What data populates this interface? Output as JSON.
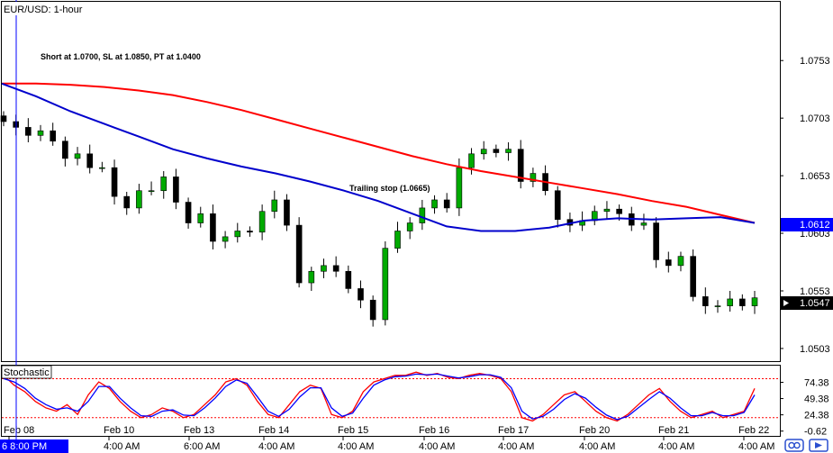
{
  "chart_data": [
    {
      "type": "candlestick",
      "title": "EUR/USD: 1-hour",
      "yticks": [
        "1.0753",
        "1.0703",
        "1.0653",
        "1.0603",
        "1.0553",
        "1.0503"
      ],
      "ytick_values": [
        1.0753,
        1.0703,
        1.0653,
        1.0603,
        1.0553,
        1.0503
      ],
      "ylim": [
        1.0492,
        1.0804
      ],
      "xticks": [
        "Feb 08",
        "Feb 10",
        "Feb 13",
        "Feb 14",
        "Feb 15",
        "Feb 16",
        "Feb 17",
        "Feb 20",
        "Feb 21",
        "Feb 22"
      ],
      "xticks_time": [
        "6 8:00 PM",
        "4:00 AM",
        "6:00 AM",
        "4:00 AM",
        "4:00 AM",
        "4:00 AM",
        "4:00 AM",
        "4:00 AM",
        "4:00 AM",
        "4:00 AM"
      ],
      "annotations": [
        {
          "text": "Short at 1.0700, SL at 1.0850, PT at 1.0400"
        },
        {
          "text": "Trailing stop (1.0665)"
        }
      ],
      "price_labels": [
        {
          "text": "1.0612",
          "value": 1.0612,
          "color": "#0000ff"
        },
        {
          "text": "1.0547",
          "value": 1.0547,
          "color": "#000000"
        }
      ],
      "series": [
        {
          "kind": "moving-average",
          "color": "#ff0000",
          "values": [
            1.0733,
            1.0733,
            1.0732,
            1.073,
            1.0727,
            1.0723,
            1.0717,
            1.071,
            1.0702,
            1.0694,
            1.0686,
            1.0678,
            1.067,
            1.0663,
            1.0657,
            1.0652,
            1.0647,
            1.0642,
            1.0637,
            1.0631,
            1.0626,
            1.0619,
            1.0612
          ]
        },
        {
          "kind": "moving-average",
          "color": "#0000cc",
          "values": [
            1.0733,
            1.0722,
            1.0709,
            1.0698,
            1.0687,
            1.0676,
            1.0668,
            1.0661,
            1.0655,
            1.0648,
            1.064,
            1.0631,
            1.062,
            1.0609,
            1.0605,
            1.0605,
            1.0608,
            1.0614,
            1.0616,
            1.0615,
            1.0616,
            1.0617,
            1.0612
          ]
        },
        {
          "kind": "price-close",
          "values": [
            1.07,
            1.0695,
            1.0688,
            1.0692,
            1.0683,
            1.0668,
            1.0672,
            1.066,
            1.066,
            1.0635,
            1.0625,
            1.064,
            1.064,
            1.0652,
            1.063,
            1.0612,
            1.062,
            1.0596,
            1.06,
            1.0605,
            1.0604,
            1.0622,
            1.0632,
            1.061,
            1.056,
            1.057,
            1.0575,
            1.057,
            1.0555,
            1.0545,
            1.0528,
            1.059,
            1.0605,
            1.0612,
            1.0625,
            1.0632,
            1.0625,
            1.066,
            1.0672,
            1.0676,
            1.0673,
            1.0676,
            1.0648,
            1.0655,
            1.064,
            1.0615,
            1.061,
            1.0614,
            1.0622,
            1.0624,
            1.062,
            1.061,
            1.0612,
            1.058,
            1.0575,
            1.0583,
            1.0548,
            1.054,
            1.054,
            1.0546,
            1.054,
            1.0547
          ]
        }
      ]
    },
    {
      "type": "line",
      "title": "Stochastic",
      "yticks": [
        "74.38",
        "49.38",
        "24.38",
        "-0.62"
      ],
      "ytick_values": [
        74.38,
        49.38,
        24.38,
        -0.62
      ],
      "ylim": [
        -8,
        100
      ],
      "levels": [
        80,
        20
      ],
      "series": [
        {
          "color": "#ff0000",
          "values": [
            85,
            70,
            60,
            45,
            35,
            30,
            40,
            25,
            55,
            75,
            65,
            45,
            30,
            20,
            25,
            35,
            30,
            20,
            25,
            40,
            55,
            75,
            80,
            70,
            45,
            25,
            20,
            40,
            60,
            70,
            65,
            25,
            20,
            30,
            60,
            75,
            80,
            85,
            85,
            90,
            85,
            88,
            82,
            80,
            85,
            88,
            85,
            80,
            60,
            20,
            15,
            25,
            40,
            55,
            60,
            45,
            30,
            20,
            15,
            25,
            40,
            55,
            65,
            45,
            30,
            20,
            25,
            30,
            20,
            25,
            30,
            65
          ]
        },
        {
          "color": "#0000ff",
          "values": [
            80,
            75,
            65,
            50,
            40,
            33,
            35,
            30,
            45,
            68,
            68,
            50,
            35,
            23,
            22,
            30,
            32,
            24,
            23,
            35,
            50,
            68,
            78,
            73,
            52,
            30,
            22,
            33,
            52,
            66,
            66,
            35,
            22,
            27,
            50,
            70,
            78,
            83,
            84,
            87,
            86,
            87,
            84,
            81,
            83,
            86,
            86,
            82,
            66,
            30,
            18,
            22,
            33,
            48,
            57,
            50,
            36,
            24,
            17,
            22,
            35,
            48,
            60,
            50,
            35,
            23,
            23,
            28,
            23,
            23,
            28,
            55
          ]
        }
      ]
    }
  ],
  "colors": {
    "bullish": "#00aa00",
    "bearish": "#000000",
    "ma_fast": "#0000cc",
    "ma_slow": "#ff0000",
    "crosshair": "#0000ff",
    "level_line": "#ff0000"
  },
  "footer_icons": [
    "chart-link-icon",
    "scroll-right-icon"
  ]
}
